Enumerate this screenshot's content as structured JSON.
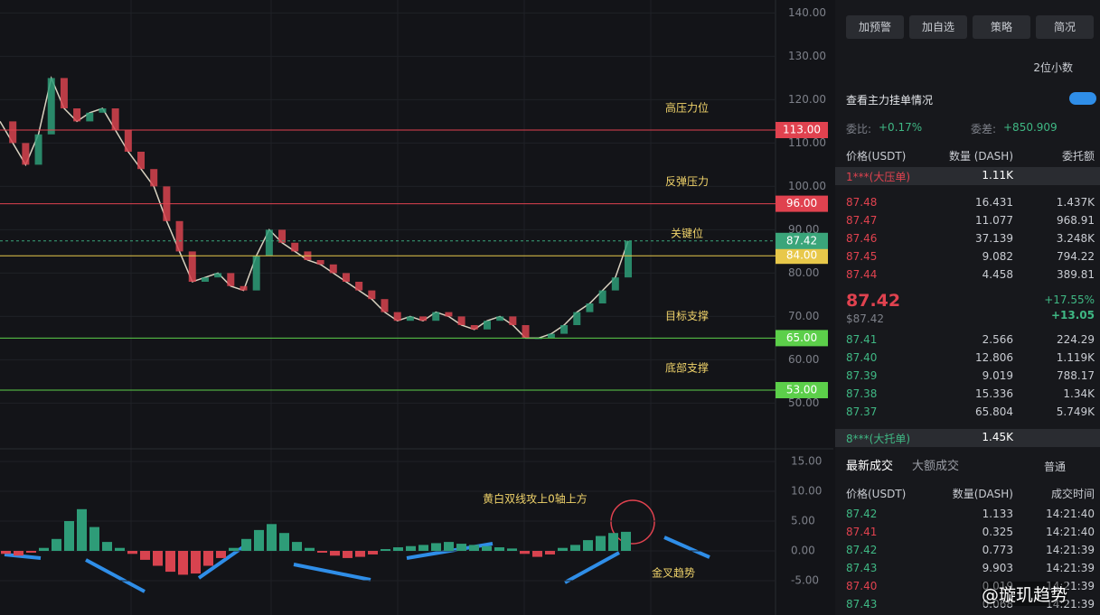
{
  "price_chart": {
    "ylim": [
      40,
      143
    ],
    "yticks": [
      {
        "value": 140,
        "label": "140.00"
      },
      {
        "value": 130,
        "label": "130.00"
      },
      {
        "value": 120,
        "label": "120.00"
      },
      {
        "value": 110,
        "label": "110.00"
      },
      {
        "value": 100,
        "label": "100.00"
      },
      {
        "value": 90,
        "label": "90.00"
      },
      {
        "value": 80,
        "label": "80.00"
      },
      {
        "value": 70,
        "label": "70.00"
      },
      {
        "value": 60,
        "label": "60.00"
      },
      {
        "value": 50,
        "label": "50.00"
      }
    ],
    "levels": [
      {
        "name": "高压力位",
        "value": 113,
        "label": "113.00",
        "color": "#e0424f"
      },
      {
        "name": "反弹压力",
        "value": 96,
        "label": "96.00",
        "color": "#e0424f"
      },
      {
        "name": "关键位",
        "value": 84,
        "label": "84.00",
        "color": "#e8c84a"
      },
      {
        "name": "目标支撑",
        "value": 65,
        "label": "65.00",
        "color": "#5ccf4a"
      },
      {
        "name": "底部支撑",
        "value": 53,
        "label": "53.00",
        "color": "#5ccf4a"
      }
    ],
    "current": {
      "value": 87.42,
      "label": "87.42",
      "color": "#3aa57a"
    },
    "closes": [
      115,
      110,
      105,
      112,
      125,
      118,
      115,
      117,
      118,
      113,
      108,
      104,
      100,
      92,
      85,
      78,
      79,
      80,
      77,
      76,
      84,
      90,
      87,
      85,
      83,
      82,
      80,
      78,
      76,
      74,
      71,
      69,
      70,
      69,
      71,
      70,
      68,
      67,
      69,
      70,
      68,
      65,
      65,
      66,
      68,
      71,
      73,
      76,
      79,
      87.42
    ]
  },
  "macd_chart": {
    "ylim": [
      -10,
      17
    ],
    "yticks": [
      {
        "value": 15,
        "label": "15.00"
      },
      {
        "value": 10,
        "label": "10.00"
      },
      {
        "value": 5,
        "label": "5.00"
      },
      {
        "value": 0,
        "label": "0.00"
      },
      {
        "value": -5,
        "label": "-5.00"
      }
    ],
    "histogram": [
      -0.5,
      -0.8,
      -0.3,
      0.5,
      2,
      5,
      7,
      4,
      1.5,
      0.5,
      -0.5,
      -1.5,
      -2.5,
      -3.5,
      -4,
      -3.8,
      -2.5,
      -1.2,
      0.5,
      2,
      3.5,
      4.5,
      3,
      1.5,
      0.5,
      -0.3,
      -0.8,
      -1.2,
      -1,
      -0.6,
      0.3,
      0.6,
      0.8,
      1,
      1.3,
      1.5,
      1.2,
      1,
      0.8,
      0.6,
      0.4,
      -0.5,
      -1,
      -0.6,
      0.5,
      1,
      1.8,
      2.5,
      3,
      3.2
    ],
    "annotations": [
      "黄白双线攻上0轴上方",
      "金叉趋势"
    ]
  },
  "sidebar": {
    "buttons": [
      "加预警",
      "加自选",
      "策略",
      "简况"
    ],
    "decimals": "2位小数",
    "depth_link": "查看主力挂单情况",
    "ratio_label": "委比:",
    "ratio": "+0.17%",
    "diff_label": "委差:",
    "diff": "+850.909",
    "book_headers": [
      "价格(USDT)",
      "数量 (DASH)",
      "委托额"
    ],
    "big_ask": {
      "name": "1***(大压单)",
      "amount": "1.11K"
    },
    "asks": [
      [
        "87.48",
        "16.431",
        "1.437K"
      ],
      [
        "87.47",
        "11.077",
        "968.91"
      ],
      [
        "87.46",
        "37.139",
        "3.248K"
      ],
      [
        "87.45",
        "9.082",
        "794.22"
      ],
      [
        "87.44",
        "4.458",
        "389.81"
      ]
    ],
    "last_price": "87.42",
    "last_usd": "$87.42",
    "change_pct": "+17.55%",
    "change": "+13.05",
    "bids": [
      [
        "87.41",
        "2.566",
        "224.29"
      ],
      [
        "87.40",
        "12.806",
        "1.119K"
      ],
      [
        "87.39",
        "9.019",
        "788.17"
      ],
      [
        "87.38",
        "15.336",
        "1.34K"
      ],
      [
        "87.37",
        "65.804",
        "5.749K"
      ]
    ],
    "big_bid": {
      "name": "8***(大托单)",
      "amount": "1.45K"
    },
    "tabs": [
      "最新成交",
      "大额成交"
    ],
    "filter": "普通",
    "trade_headers": [
      "价格(USDT)",
      "数量(DASH)",
      "成交时间"
    ],
    "trades": [
      {
        "price": "87.42",
        "qty": "1.133",
        "time": "14:21:40",
        "color": "#3fb884"
      },
      {
        "price": "87.41",
        "qty": "0.325",
        "time": "14:21:40",
        "color": "#e0424f"
      },
      {
        "price": "87.42",
        "qty": "0.773",
        "time": "14:21:39",
        "color": "#3fb884"
      },
      {
        "price": "87.43",
        "qty": "9.903",
        "time": "14:21:39",
        "color": "#3fb884"
      },
      {
        "price": "87.40",
        "qty": "0.019",
        "time": "14:21:39",
        "color": "#e0424f"
      },
      {
        "price": "87.43",
        "qty": "0.068",
        "time": "14:21:39",
        "color": "#3fb884"
      }
    ],
    "watermark": "@璇玑趋势"
  }
}
